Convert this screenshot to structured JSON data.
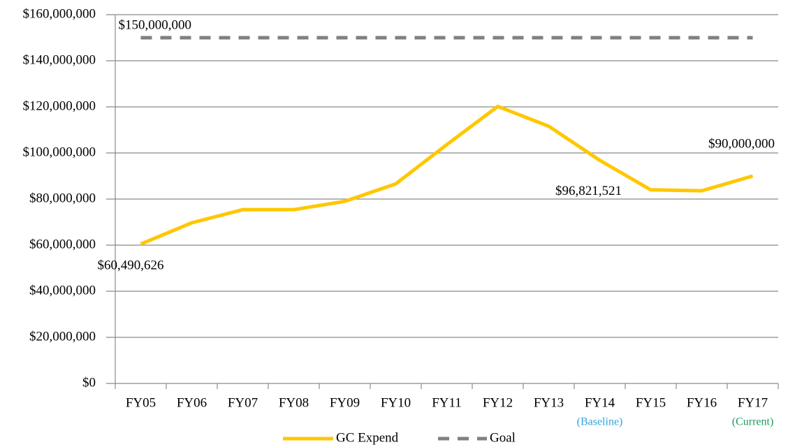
{
  "chart_data": {
    "type": "line",
    "categories": [
      "FY05",
      "FY06",
      "FY07",
      "FY08",
      "FY09",
      "FY10",
      "FY11",
      "FY12",
      "FY13",
      "FY14",
      "FY15",
      "FY16",
      "FY17"
    ],
    "category_notes": [
      null,
      null,
      null,
      null,
      null,
      null,
      null,
      null,
      null,
      {
        "text": "(Baseline)",
        "color": "#2fa6d8"
      },
      null,
      null,
      {
        "text": "(Current)",
        "color": "#1e9a5c"
      }
    ],
    "series": [
      {
        "name": "GC Expend",
        "color": "#ffc700",
        "dashed": false,
        "values": [
          60490626,
          69700000,
          75400000,
          75400000,
          79000000,
          86600000,
          103600000,
          120200000,
          111600000,
          96821521,
          84000000,
          83600000,
          90000000
        ],
        "value_labels": [
          "$60,490,626",
          null,
          null,
          null,
          null,
          null,
          null,
          null,
          null,
          "$96,821,521",
          null,
          null,
          "$90,000,000"
        ]
      },
      {
        "name": "Goal",
        "color": "#808080",
        "dashed": true,
        "values": [
          150000000,
          150000000,
          150000000,
          150000000,
          150000000,
          150000000,
          150000000,
          150000000,
          150000000,
          150000000,
          150000000,
          150000000,
          150000000
        ],
        "value_labels": [
          "$150,000,000",
          null,
          null,
          null,
          null,
          null,
          null,
          null,
          null,
          null,
          null,
          null,
          null
        ]
      }
    ],
    "ylim": [
      0,
      160000000
    ],
    "yticks": [
      {
        "value": 0,
        "label": "$0"
      },
      {
        "value": 20000000,
        "label": "$20,000,000"
      },
      {
        "value": 40000000,
        "label": "$40,000,000"
      },
      {
        "value": 60000000,
        "label": "$60,000,000"
      },
      {
        "value": 80000000,
        "label": "$80,000,000"
      },
      {
        "value": 100000000,
        "label": "$100,000,000"
      },
      {
        "value": 120000000,
        "label": "$120,000,000"
      },
      {
        "value": 140000000,
        "label": "$140,000,000"
      },
      {
        "value": 160000000,
        "label": "$160,000,000"
      }
    ],
    "grid": true,
    "legend": "bottom"
  }
}
